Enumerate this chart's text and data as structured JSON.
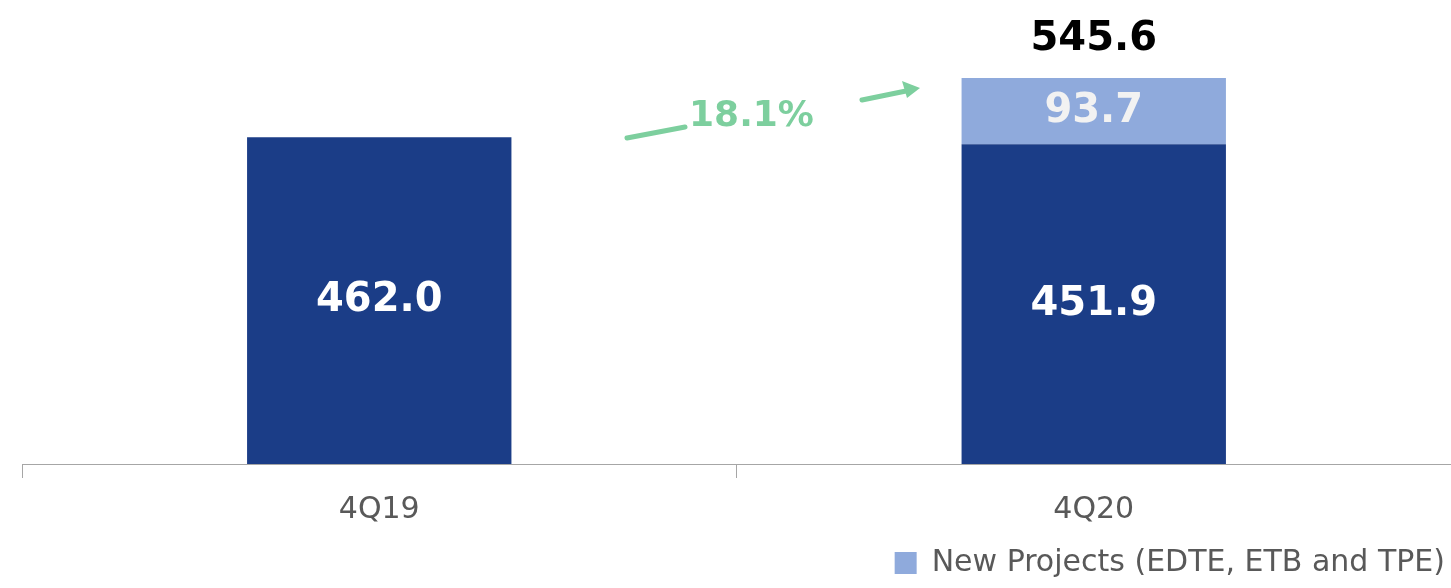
{
  "chart_data": {
    "type": "bar",
    "stacked": true,
    "categories": [
      "4Q19",
      "4Q20"
    ],
    "series": [
      {
        "color": "#1b3d87",
        "values": [
          462.0,
          451.9
        ],
        "value_labels": [
          "462.0",
          "451.9"
        ]
      },
      {
        "name": "New Projects (EDTE, ETB and TPE)",
        "color": "#8faadc",
        "values": [
          null,
          93.7
        ],
        "value_labels": [
          null,
          "93.7"
        ]
      }
    ],
    "totals": [
      null,
      "545.6"
    ],
    "relative": false,
    "annotations": [
      "18.1%"
    ],
    "legend": "bottom right",
    "grid": false
  }
}
